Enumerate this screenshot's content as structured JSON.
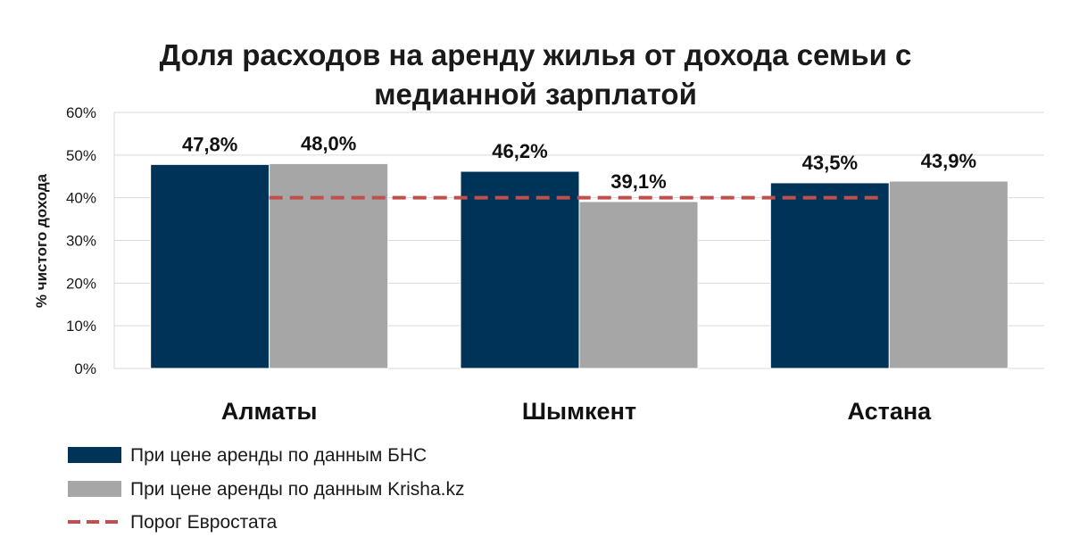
{
  "chart_data": {
    "type": "bar",
    "title_lines": [
      "Доля расходов на аренду жилья от дохода семьи с",
      "медианной зарплатой"
    ],
    "ylabel": "% чистого дохода",
    "xlabel": "",
    "categories": [
      "Алматы",
      "Шымкент",
      "Астана"
    ],
    "series": [
      {
        "name": "При цене аренды по данным БНС",
        "color": "#003358",
        "values": [
          47.8,
          46.2,
          43.5
        ],
        "labels": [
          "47,8%",
          "46,2%",
          "43,5%"
        ]
      },
      {
        "name": "При цене аренды по данным Krisha.kz",
        "color": "#a6a6a6",
        "values": [
          48.0,
          39.1,
          43.9
        ],
        "labels": [
          "48,0%",
          "39,1%",
          "43,9%"
        ]
      }
    ],
    "threshold": {
      "name": "Порог Евростата",
      "value": 40,
      "color": "#c0504d",
      "style": "dashed"
    },
    "ylim": [
      0,
      60
    ],
    "yticks": [
      0,
      10,
      20,
      30,
      40,
      50,
      60
    ],
    "ytick_labels": [
      "0%",
      "10%",
      "20%",
      "30%",
      "40%",
      "50%",
      "60%"
    ],
    "grid": true,
    "legend_position": "bottom-left"
  }
}
